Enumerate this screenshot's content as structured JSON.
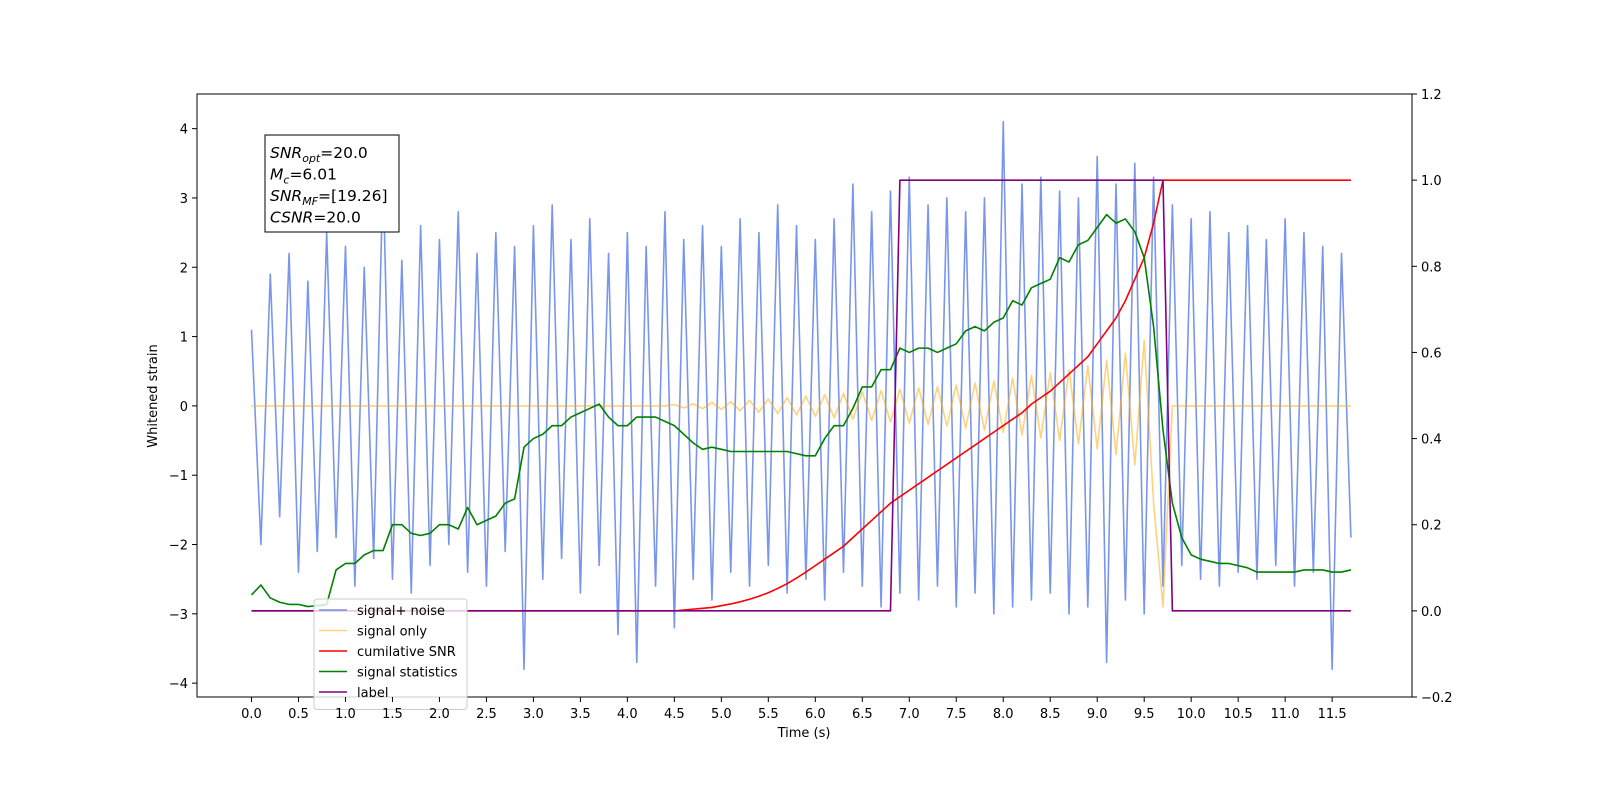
{
  "chart_data": {
    "type": "line",
    "xlabel": "Time (s)",
    "ylabel": "Whitened strain",
    "annotation": [
      {
        "main": "SNR",
        "sub": "opt",
        "rest": "=20.0"
      },
      {
        "main": "M",
        "sub": "c",
        "rest": "=6.01"
      },
      {
        "main": "SNR",
        "sub": "MF",
        "rest": "=[19.26]"
      },
      {
        "main": "CSNR",
        "rest": "=20.0"
      }
    ],
    "legend": "lower left",
    "xlim": [
      -0.58,
      12.35
    ],
    "ylim": [
      -4.2,
      4.5
    ],
    "y2lim": [
      -0.2,
      1.2
    ],
    "xticks": [
      {
        "value": 0,
        "label": "0.0"
      },
      0.5,
      {
        "value": 1,
        "label": "1.0"
      },
      1.5,
      {
        "value": 2,
        "label": "2.0"
      },
      2.5,
      {
        "value": 3,
        "label": "3.0"
      },
      3.5,
      {
        "value": 4,
        "label": "4.0"
      },
      4.5,
      {
        "value": 5,
        "label": "5.0"
      },
      5.5,
      {
        "value": 6,
        "label": "6.0"
      },
      6.5,
      {
        "value": 7,
        "label": "7.0"
      },
      7.5,
      {
        "value": 8,
        "label": "8.0"
      },
      8.5,
      {
        "value": 9,
        "label": "9.0"
      },
      9.5,
      {
        "value": 10,
        "label": "10.0"
      },
      10.5,
      {
        "value": 11,
        "label": "11.0"
      },
      11.5
    ],
    "yticks": [
      {
        "value": -4,
        "label": "−4"
      },
      {
        "value": -3,
        "label": "−3"
      },
      {
        "value": -2,
        "label": "−2"
      },
      {
        "value": -1,
        "label": "−1"
      },
      0,
      1,
      2,
      3,
      4
    ],
    "y2ticks": [
      {
        "value": -0.2,
        "label": "−0.2"
      },
      {
        "value": 0,
        "label": "0.0"
      },
      0.2,
      0.4,
      0.6,
      0.8,
      {
        "value": 1,
        "label": "1.0"
      },
      1.2
    ],
    "x": [
      0,
      0.1,
      0.2,
      0.3,
      0.4,
      0.5,
      0.6,
      0.7,
      0.8,
      0.9,
      1,
      1.1,
      1.2,
      1.3,
      1.4,
      1.5,
      1.6,
      1.7,
      1.8,
      1.9,
      2,
      2.1,
      2.2,
      2.3,
      2.4,
      2.5,
      2.6,
      2.7,
      2.8,
      2.9,
      3,
      3.1,
      3.2,
      3.3,
      3.4,
      3.5,
      3.6,
      3.7,
      3.8,
      3.9,
      4,
      4.1,
      4.2,
      4.3,
      4.4,
      4.5,
      4.6,
      4.7,
      4.8,
      4.9,
      5,
      5.1,
      5.2,
      5.3,
      5.4,
      5.5,
      5.6,
      5.7,
      5.8,
      5.9,
      6,
      6.1,
      6.2,
      6.3,
      6.4,
      6.5,
      6.6,
      6.7,
      6.8,
      6.9,
      7,
      7.1,
      7.2,
      7.3,
      7.4,
      7.5,
      7.6,
      7.7,
      7.8,
      7.9,
      8,
      8.1,
      8.2,
      8.3,
      8.4,
      8.5,
      8.6,
      8.7,
      8.8,
      8.9,
      9,
      9.1,
      9.2,
      9.3,
      9.4,
      9.5,
      9.6,
      9.7,
      9.8,
      9.9,
      10,
      10.1,
      10.2,
      10.3,
      10.4,
      10.5,
      10.6,
      10.7,
      10.8,
      10.9,
      11,
      11.1,
      11.2,
      11.3,
      11.4,
      11.5,
      11.6,
      11.7
    ],
    "series": [
      {
        "name": "signal+ noise",
        "color": "royalblue",
        "alpha": 0.7,
        "values": [
          1.1,
          -2.0,
          1.9,
          -1.6,
          2.2,
          -2.4,
          1.8,
          -2.1,
          2.5,
          -1.9,
          2.3,
          -2.6,
          2.0,
          -2.2,
          3.4,
          -2.5,
          2.1,
          -2.7,
          2.6,
          -2.3,
          2.4,
          -2.0,
          2.8,
          -2.4,
          2.2,
          -2.6,
          2.5,
          -2.1,
          2.3,
          -3.8,
          2.6,
          -2.5,
          2.9,
          -2.2,
          2.4,
          -2.7,
          2.7,
          -2.3,
          2.2,
          -3.3,
          2.5,
          -3.7,
          2.3,
          -2.6,
          2.8,
          -3.2,
          2.4,
          -2.5,
          2.6,
          -2.8,
          2.3,
          -2.4,
          2.7,
          -2.6,
          2.5,
          -2.3,
          2.9,
          -2.7,
          2.6,
          -2.5,
          2.4,
          -2.8,
          2.7,
          -2.4,
          3.2,
          -2.6,
          2.8,
          -2.9,
          3.1,
          -2.7,
          3.3,
          -2.8,
          2.9,
          -2.6,
          3.0,
          -2.9,
          2.8,
          -2.7,
          3.0,
          -3.0,
          4.1,
          -2.9,
          3.2,
          -2.8,
          3.3,
          -2.7,
          3.1,
          -3.0,
          3.0,
          -2.9,
          3.6,
          -3.7,
          3.2,
          -2.8,
          3.5,
          -3.0,
          3.3,
          -2.6,
          2.9,
          -2.3,
          2.7,
          -2.5,
          2.8,
          -2.6,
          2.5,
          -2.4,
          2.6,
          -2.5,
          2.4,
          -2.3,
          2.7,
          -2.6,
          2.5,
          -2.4,
          2.3,
          -3.8,
          2.2,
          -1.9
        ]
      },
      {
        "name": "signal only",
        "color": "orange",
        "alpha": 0.5,
        "values": [
          0,
          0,
          0,
          0,
          0,
          0,
          0,
          0,
          0,
          0,
          0,
          0,
          0,
          0,
          0,
          0,
          0,
          0,
          0,
          0,
          0,
          0,
          0,
          0,
          0,
          0,
          0,
          0,
          0,
          0,
          0,
          0,
          0,
          0,
          0,
          0,
          0,
          0,
          0,
          0,
          0,
          0,
          0,
          0,
          0,
          0.02,
          -0.03,
          0.03,
          -0.04,
          0.05,
          -0.05,
          0.06,
          -0.07,
          0.08,
          -0.09,
          0.1,
          -0.11,
          0.12,
          -0.13,
          0.14,
          -0.15,
          0.16,
          -0.17,
          0.18,
          -0.19,
          0.2,
          -0.21,
          0.22,
          -0.23,
          0.24,
          -0.25,
          0.26,
          -0.27,
          0.28,
          -0.29,
          0.3,
          -0.32,
          0.33,
          -0.35,
          0.36,
          -0.38,
          0.4,
          -0.42,
          0.44,
          -0.46,
          0.48,
          -0.5,
          0.52,
          -0.55,
          0.58,
          -0.62,
          0.66,
          -0.7,
          0.76,
          -0.85,
          0.95,
          -1.4,
          -2.9,
          0,
          0,
          0,
          0,
          0,
          0,
          0,
          0,
          0,
          0,
          0,
          0,
          0,
          0,
          0,
          0,
          0,
          0,
          0,
          0
        ]
      },
      {
        "name": "cumilative SNR",
        "color": "red",
        "alpha": 1,
        "axis": "y2",
        "values": [
          0,
          0,
          0,
          0,
          0,
          0,
          0,
          0,
          0,
          0,
          0,
          0,
          0,
          0,
          0,
          0,
          0,
          0,
          0,
          0,
          0,
          0,
          0,
          0,
          0,
          0,
          0,
          0,
          0,
          0,
          0,
          0,
          0,
          0,
          0,
          0,
          0,
          0,
          0,
          0,
          0,
          0,
          0,
          0,
          0,
          0,
          0.002,
          0.004,
          0.006,
          0.008,
          0.012,
          0.016,
          0.021,
          0.027,
          0.034,
          0.042,
          0.052,
          0.063,
          0.076,
          0.09,
          0.105,
          0.12,
          0.135,
          0.15,
          0.17,
          0.19,
          0.21,
          0.23,
          0.25,
          0.265,
          0.28,
          0.295,
          0.31,
          0.325,
          0.34,
          0.355,
          0.37,
          0.385,
          0.4,
          0.415,
          0.43,
          0.445,
          0.46,
          0.48,
          0.495,
          0.51,
          0.53,
          0.55,
          0.57,
          0.59,
          0.62,
          0.65,
          0.68,
          0.72,
          0.77,
          0.82,
          0.9,
          1.0,
          1,
          1,
          1,
          1,
          1,
          1,
          1,
          1,
          1,
          1,
          1,
          1,
          1,
          1,
          1,
          1,
          1,
          1,
          1,
          1
        ]
      },
      {
        "name": "signal statistics",
        "color": "green",
        "alpha": 1,
        "axis": "y2",
        "values": [
          0.037,
          0.06,
          0.03,
          0.02,
          0.015,
          0.015,
          0.01,
          0.012,
          0.015,
          0.095,
          0.11,
          0.11,
          0.13,
          0.14,
          0.14,
          0.2,
          0.2,
          0.18,
          0.175,
          0.18,
          0.2,
          0.2,
          0.19,
          0.24,
          0.2,
          0.21,
          0.22,
          0.25,
          0.26,
          0.38,
          0.4,
          0.41,
          0.43,
          0.43,
          0.45,
          0.46,
          0.47,
          0.48,
          0.45,
          0.43,
          0.43,
          0.45,
          0.45,
          0.45,
          0.44,
          0.43,
          0.41,
          0.39,
          0.375,
          0.38,
          0.375,
          0.37,
          0.37,
          0.37,
          0.37,
          0.37,
          0.37,
          0.37,
          0.365,
          0.36,
          0.36,
          0.4,
          0.43,
          0.43,
          0.47,
          0.52,
          0.52,
          0.56,
          0.56,
          0.61,
          0.6,
          0.61,
          0.61,
          0.6,
          0.61,
          0.62,
          0.65,
          0.66,
          0.65,
          0.67,
          0.68,
          0.72,
          0.71,
          0.75,
          0.76,
          0.77,
          0.82,
          0.81,
          0.85,
          0.86,
          0.89,
          0.92,
          0.9,
          0.91,
          0.88,
          0.82,
          0.66,
          0.42,
          0.25,
          0.17,
          0.13,
          0.12,
          0.115,
          0.11,
          0.11,
          0.105,
          0.1,
          0.09,
          0.09,
          0.09,
          0.09,
          0.09,
          0.095,
          0.095,
          0.095,
          0.09,
          0.09,
          0.095
        ]
      },
      {
        "name": "label",
        "color": "purple",
        "alpha": 1,
        "axis": "y2",
        "values": [
          0,
          0,
          0,
          0,
          0,
          0,
          0,
          0,
          0,
          0,
          0,
          0,
          0,
          0,
          0,
          0,
          0,
          0,
          0,
          0,
          0,
          0,
          0,
          0,
          0,
          0,
          0,
          0,
          0,
          0,
          0,
          0,
          0,
          0,
          0,
          0,
          0,
          0,
          0,
          0,
          0,
          0,
          0,
          0,
          0,
          0,
          0,
          0,
          0,
          0,
          0,
          0,
          0,
          0,
          0,
          0,
          0,
          0,
          0,
          0,
          0,
          0,
          0,
          0,
          0,
          0,
          0,
          0,
          0,
          1,
          1,
          1,
          1,
          1,
          1,
          1,
          1,
          1,
          1,
          1,
          1,
          1,
          1,
          1,
          1,
          1,
          1,
          1,
          1,
          1,
          1,
          1,
          1,
          1,
          1,
          1,
          1,
          1,
          0,
          0,
          0,
          0,
          0,
          0,
          0,
          0,
          0,
          0,
          0,
          0,
          0,
          0,
          0,
          0,
          0,
          0,
          0,
          0
        ]
      }
    ]
  }
}
